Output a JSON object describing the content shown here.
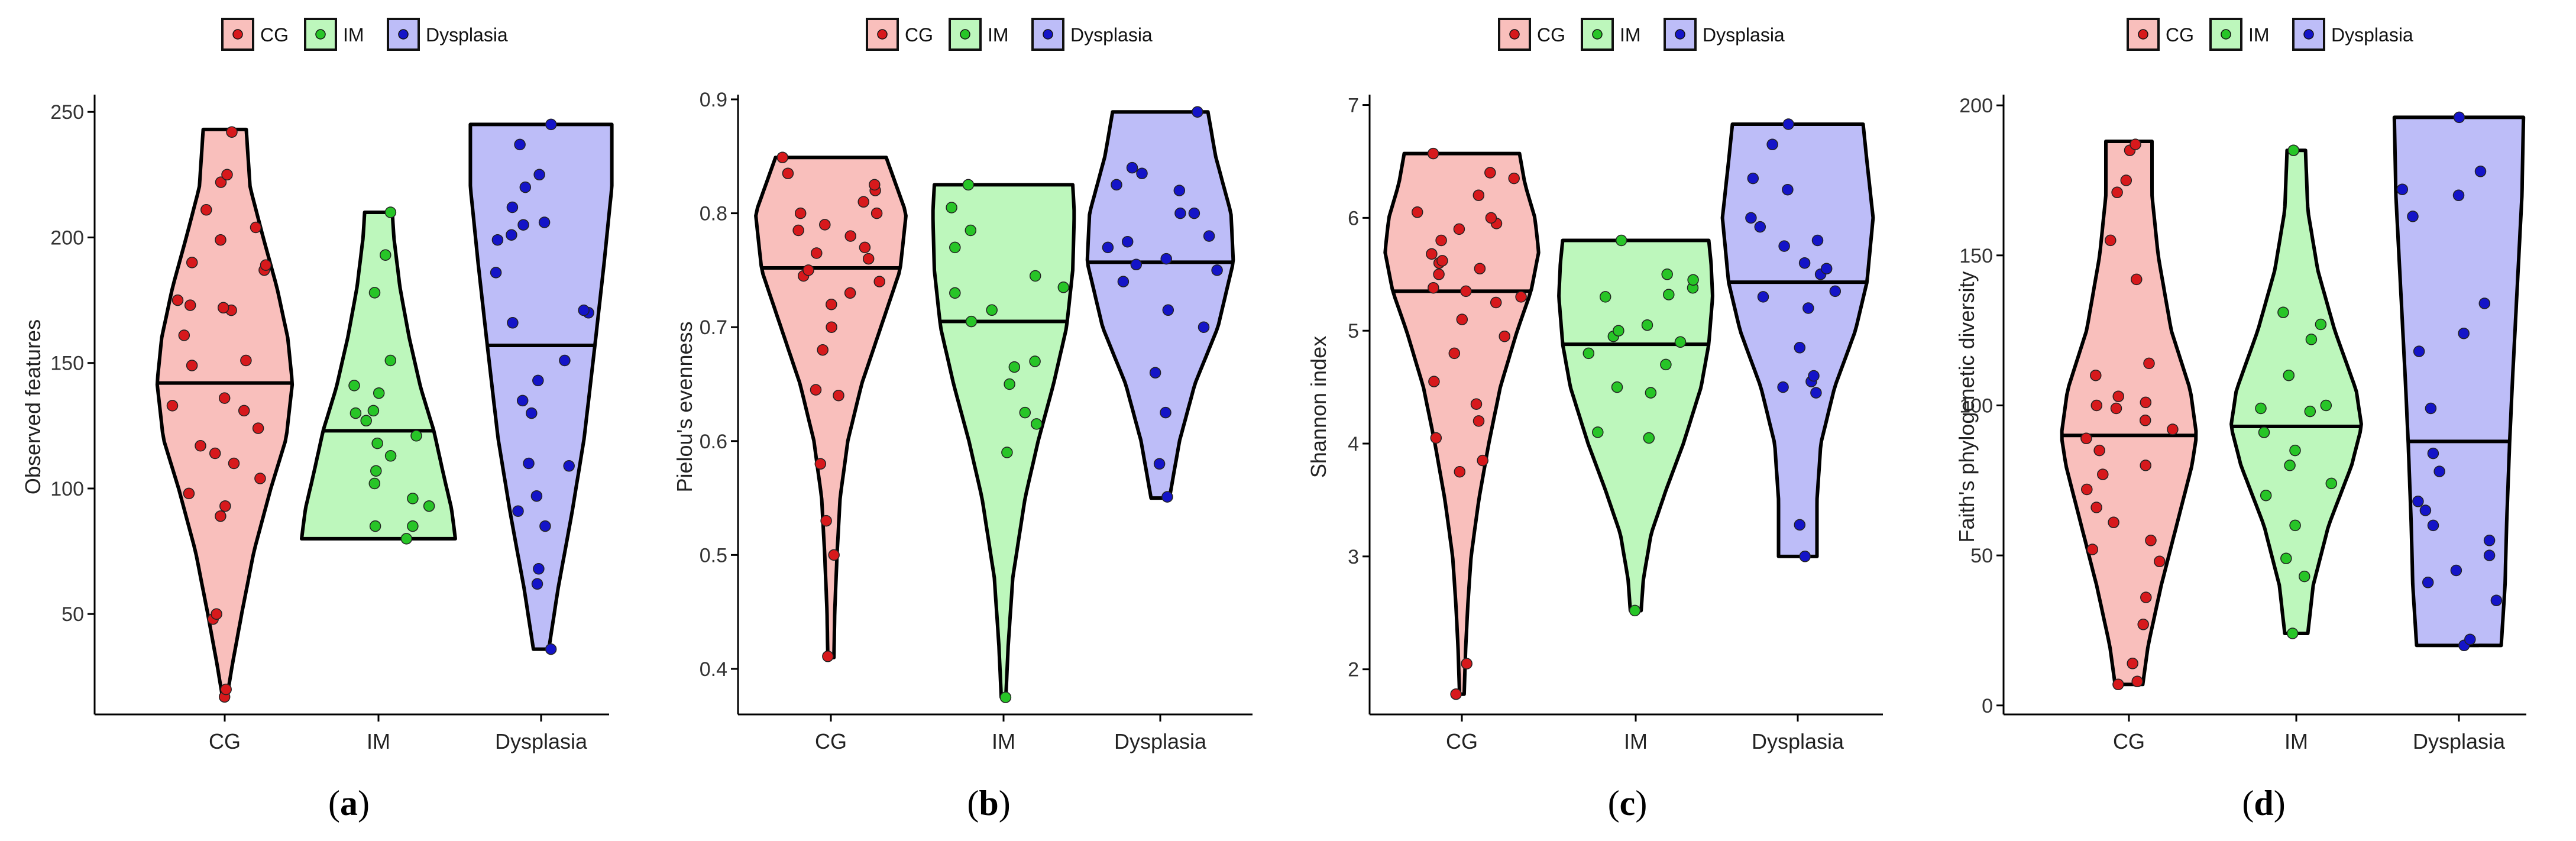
{
  "colors": {
    "CG": {
      "fill": "#F9BFBC",
      "point": "#D7191C"
    },
    "IM": {
      "fill": "#BDF7BC",
      "point": "#27C527"
    },
    "Dysplasia": {
      "fill": "#BDBDF8",
      "point": "#1414C8"
    }
  },
  "legend": [
    "CG",
    "IM",
    "Dysplasia"
  ],
  "chart_data": [
    {
      "type": "violin",
      "panel": "a",
      "ylabel": "Observed features",
      "categories": [
        "CG",
        "IM",
        "Dysplasia"
      ],
      "ylim": [
        10,
        255
      ],
      "yticks": [
        50,
        100,
        150,
        200,
        250
      ],
      "series": [
        {
          "name": "CG",
          "median": 142,
          "min": 17,
          "max": 243,
          "profile": [
            [
              17,
              0.03
            ],
            [
              30,
              0.1
            ],
            [
              50,
              0.22
            ],
            [
              75,
              0.38
            ],
            [
              100,
              0.6
            ],
            [
              120,
              0.8
            ],
            [
              142,
              0.88
            ],
            [
              160,
              0.82
            ],
            [
              180,
              0.68
            ],
            [
              200,
              0.5
            ],
            [
              220,
              0.33
            ],
            [
              243,
              0.28
            ]
          ],
          "points": [
            17,
            20,
            48,
            50,
            89,
            93,
            98,
            104,
            110,
            114,
            117,
            124,
            131,
            133,
            136,
            149,
            151,
            161,
            171,
            172,
            173,
            175,
            187,
            189,
            190,
            199,
            204,
            211,
            222,
            225,
            242
          ]
        },
        {
          "name": "IM",
          "median": 123,
          "min": 80,
          "max": 210,
          "profile": [
            [
              80,
              1.0
            ],
            [
              92,
              0.95
            ],
            [
              105,
              0.85
            ],
            [
              123,
              0.72
            ],
            [
              140,
              0.55
            ],
            [
              160,
              0.4
            ],
            [
              180,
              0.28
            ],
            [
              200,
              0.2
            ],
            [
              210,
              0.18
            ]
          ],
          "points": [
            80,
            85,
            85,
            93,
            96,
            102,
            107,
            113,
            118,
            121,
            127,
            130,
            131,
            138,
            141,
            151,
            178,
            193,
            210
          ]
        },
        {
          "name": "Dysplasia",
          "median": 157,
          "min": 36,
          "max": 245,
          "profile": [
            [
              36,
              0.1
            ],
            [
              60,
              0.22
            ],
            [
              90,
              0.4
            ],
            [
              120,
              0.56
            ],
            [
              157,
              0.7
            ],
            [
              190,
              0.82
            ],
            [
              220,
              0.92
            ],
            [
              245,
              0.92
            ]
          ],
          "points": [
            36,
            62,
            68,
            85,
            91,
            97,
            109,
            110,
            130,
            135,
            143,
            151,
            166,
            170,
            171,
            186,
            199,
            201,
            205,
            206,
            212,
            220,
            225,
            237,
            245
          ]
        }
      ]
    },
    {
      "type": "violin",
      "panel": "b",
      "ylabel": "Pielou's evenness",
      "categories": [
        "CG",
        "IM",
        "Dysplasia"
      ],
      "ylim": [
        0.36,
        0.9
      ],
      "yticks": [
        0.4,
        0.5,
        0.6,
        0.7,
        0.8,
        0.9
      ],
      "series": [
        {
          "name": "CG",
          "median": 0.752,
          "min": 0.41,
          "max": 0.849,
          "profile": [
            [
              0.41,
              0.04
            ],
            [
              0.45,
              0.05
            ],
            [
              0.5,
              0.08
            ],
            [
              0.55,
              0.12
            ],
            [
              0.6,
              0.22
            ],
            [
              0.65,
              0.4
            ],
            [
              0.7,
              0.65
            ],
            [
              0.75,
              0.9
            ],
            [
              0.8,
              0.98
            ],
            [
              0.849,
              0.72
            ]
          ],
          "points": [
            0.411,
            0.5,
            0.53,
            0.58,
            0.645,
            0.64,
            0.68,
            0.7,
            0.72,
            0.73,
            0.74,
            0.745,
            0.75,
            0.76,
            0.765,
            0.77,
            0.78,
            0.785,
            0.79,
            0.8,
            0.8,
            0.81,
            0.82,
            0.825,
            0.835,
            0.849
          ]
        },
        {
          "name": "IM",
          "median": 0.705,
          "min": 0.375,
          "max": 0.825,
          "profile": [
            [
              0.375,
              0.03
            ],
            [
              0.42,
              0.06
            ],
            [
              0.48,
              0.12
            ],
            [
              0.55,
              0.28
            ],
            [
              0.6,
              0.45
            ],
            [
              0.65,
              0.65
            ],
            [
              0.7,
              0.82
            ],
            [
              0.75,
              0.9
            ],
            [
              0.8,
              0.92
            ],
            [
              0.825,
              0.9
            ]
          ],
          "points": [
            0.375,
            0.59,
            0.615,
            0.625,
            0.65,
            0.665,
            0.67,
            0.705,
            0.715,
            0.73,
            0.735,
            0.745,
            0.77,
            0.785,
            0.805,
            0.825
          ]
        },
        {
          "name": "Dysplasia",
          "median": 0.757,
          "min": 0.55,
          "max": 0.889,
          "profile": [
            [
              0.55,
              0.12
            ],
            [
              0.6,
              0.25
            ],
            [
              0.65,
              0.45
            ],
            [
              0.7,
              0.75
            ],
            [
              0.757,
              0.95
            ],
            [
              0.8,
              0.92
            ],
            [
              0.85,
              0.72
            ],
            [
              0.889,
              0.62
            ]
          ],
          "points": [
            0.551,
            0.58,
            0.625,
            0.66,
            0.7,
            0.715,
            0.74,
            0.75,
            0.755,
            0.76,
            0.77,
            0.775,
            0.78,
            0.8,
            0.8,
            0.82,
            0.825,
            0.835,
            0.84,
            0.889
          ]
        }
      ]
    },
    {
      "type": "violin",
      "panel": "c",
      "ylabel": "Shannon index",
      "categories": [
        "CG",
        "IM",
        "Dysplasia"
      ],
      "ylim": [
        1.6,
        7.05
      ],
      "yticks": [
        2,
        3,
        4,
        5,
        6,
        7
      ],
      "series": [
        {
          "name": "CG",
          "median": 5.35,
          "min": 1.78,
          "max": 6.57,
          "profile": [
            [
              1.78,
              0.03
            ],
            [
              2.2,
              0.05
            ],
            [
              2.6,
              0.08
            ],
            [
              3.0,
              0.12
            ],
            [
              3.5,
              0.22
            ],
            [
              4.0,
              0.35
            ],
            [
              4.5,
              0.5
            ],
            [
              5.0,
              0.72
            ],
            [
              5.35,
              0.9
            ],
            [
              5.7,
              1.0
            ],
            [
              6.0,
              0.95
            ],
            [
              6.3,
              0.82
            ],
            [
              6.57,
              0.75
            ]
          ],
          "points": [
            1.78,
            2.05,
            3.75,
            3.85,
            4.05,
            4.2,
            4.35,
            4.55,
            4.8,
            4.95,
            5.1,
            5.25,
            5.3,
            5.35,
            5.38,
            5.5,
            5.55,
            5.6,
            5.62,
            5.68,
            5.8,
            5.9,
            5.95,
            6.0,
            6.05,
            6.2,
            6.35,
            6.4,
            6.57
          ]
        },
        {
          "name": "IM",
          "median": 4.88,
          "min": 2.52,
          "max": 5.8,
          "profile": [
            [
              2.52,
              0.07
            ],
            [
              2.8,
              0.1
            ],
            [
              3.2,
              0.2
            ],
            [
              3.6,
              0.4
            ],
            [
              4.0,
              0.62
            ],
            [
              4.5,
              0.85
            ],
            [
              4.88,
              0.95
            ],
            [
              5.3,
              1.0
            ],
            [
              5.6,
              0.98
            ],
            [
              5.8,
              0.95
            ]
          ],
          "points": [
            2.52,
            4.05,
            4.1,
            4.45,
            4.5,
            4.7,
            4.8,
            4.9,
            4.95,
            5.0,
            5.05,
            5.3,
            5.32,
            5.38,
            5.45,
            5.5,
            5.8
          ]
        },
        {
          "name": "Dysplasia",
          "median": 5.43,
          "min": 3.0,
          "max": 6.83,
          "profile": [
            [
              3.0,
              0.25
            ],
            [
              3.5,
              0.25
            ],
            [
              4.0,
              0.3
            ],
            [
              4.5,
              0.48
            ],
            [
              5.0,
              0.75
            ],
            [
              5.43,
              0.9
            ],
            [
              6.0,
              0.98
            ],
            [
              6.5,
              0.9
            ],
            [
              6.83,
              0.85
            ]
          ],
          "points": [
            3.0,
            3.28,
            4.45,
            4.5,
            4.55,
            4.6,
            4.85,
            5.2,
            5.3,
            5.35,
            5.5,
            5.55,
            5.6,
            5.75,
            5.8,
            5.92,
            6.0,
            6.25,
            6.35,
            6.65,
            6.83
          ]
        }
      ]
    },
    {
      "type": "violin",
      "panel": "d",
      "ylabel": "Faith's phylogenetic diversity",
      "categories": [
        "CG",
        "IM",
        "Dysplasia"
      ],
      "ylim": [
        -3,
        202
      ],
      "yticks": [
        0,
        50,
        100,
        150,
        200
      ],
      "series": [
        {
          "name": "CG",
          "median": 90,
          "min": 7,
          "max": 188,
          "profile": [
            [
              7,
              0.18
            ],
            [
              20,
              0.25
            ],
            [
              40,
              0.42
            ],
            [
              60,
              0.62
            ],
            [
              80,
              0.82
            ],
            [
              90,
              0.88
            ],
            [
              105,
              0.8
            ],
            [
              125,
              0.55
            ],
            [
              150,
              0.38
            ],
            [
              170,
              0.3
            ],
            [
              188,
              0.3
            ]
          ],
          "points": [
            7,
            8,
            14,
            27,
            36,
            48,
            52,
            55,
            61,
            66,
            72,
            77,
            80,
            85,
            89,
            92,
            95,
            99,
            100,
            101,
            103,
            110,
            114,
            142,
            155,
            171,
            175,
            185,
            187
          ]
        },
        {
          "name": "IM",
          "median": 93,
          "min": 24,
          "max": 185,
          "profile": [
            [
              24,
              0.15
            ],
            [
              40,
              0.22
            ],
            [
              60,
              0.42
            ],
            [
              80,
              0.72
            ],
            [
              93,
              0.85
            ],
            [
              105,
              0.78
            ],
            [
              125,
              0.5
            ],
            [
              145,
              0.28
            ],
            [
              165,
              0.15
            ],
            [
              185,
              0.12
            ]
          ],
          "points": [
            24,
            43,
            49,
            60,
            70,
            74,
            80,
            85,
            91,
            98,
            99,
            100,
            110,
            122,
            127,
            131,
            185
          ]
        },
        {
          "name": "Dysplasia",
          "median": 88,
          "min": 20,
          "max": 196,
          "profile": [
            [
              20,
              0.55
            ],
            [
              40,
              0.6
            ],
            [
              60,
              0.62
            ],
            [
              88,
              0.66
            ],
            [
              110,
              0.7
            ],
            [
              140,
              0.76
            ],
            [
              170,
              0.82
            ],
            [
              196,
              0.84
            ]
          ],
          "points": [
            20,
            22,
            35,
            41,
            45,
            50,
            55,
            60,
            65,
            68,
            78,
            84,
            99,
            118,
            124,
            134,
            163,
            170,
            172,
            178,
            196
          ]
        }
      ]
    }
  ],
  "panel_labels": [
    "a",
    "b",
    "c",
    "d"
  ]
}
